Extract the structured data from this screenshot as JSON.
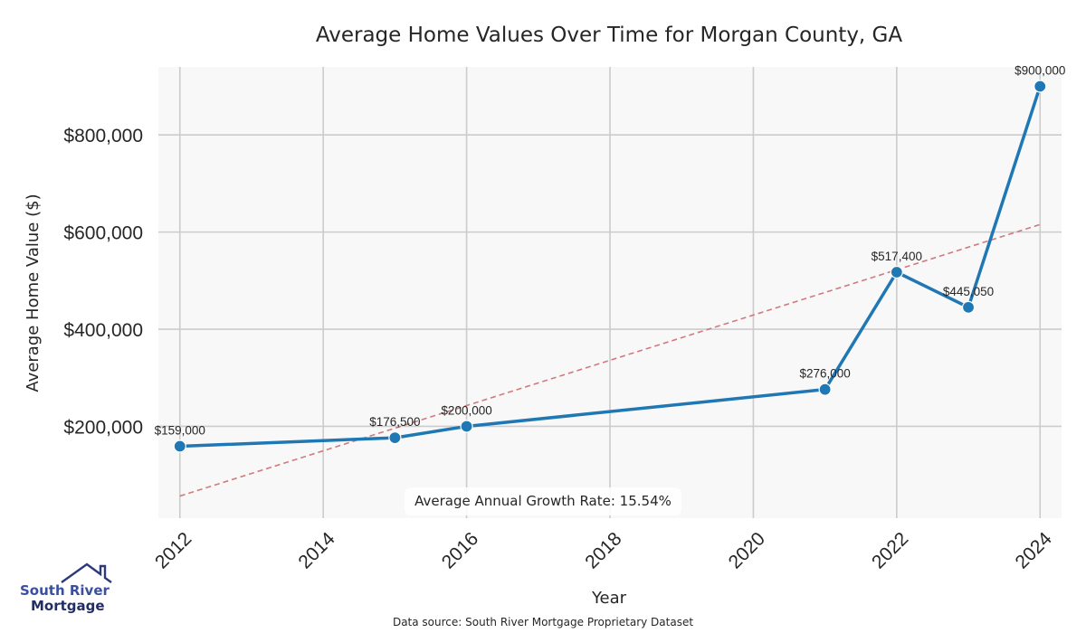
{
  "chart_data": {
    "type": "line",
    "title": "Average Home Values Over Time for Morgan County, GA",
    "xlabel": "Year",
    "ylabel": "Average Home Value ($)",
    "x": [
      2012,
      2015,
      2016,
      2021,
      2022,
      2023,
      2024
    ],
    "series": [
      {
        "name": "Average Home Value",
        "values": [
          159000,
          176500,
          200000,
          276000,
          517400,
          445050,
          900000
        ],
        "labels": [
          "$159,000",
          "$176,500",
          "$200,000",
          "$276,000",
          "$517,400",
          "$445,050",
          "$900,000"
        ],
        "color": "#1f77b4",
        "marker": "circle"
      }
    ],
    "trend_line": {
      "name": "Trend",
      "style": "dashed",
      "color": "#d07a7e",
      "start": {
        "x": 2012,
        "y": 56500
      },
      "end": {
        "x": 2024,
        "y": 615500
      }
    },
    "xticks": [
      2012,
      2014,
      2016,
      2018,
      2020,
      2022,
      2024
    ],
    "xtick_labels": [
      "2012",
      "2014",
      "2016",
      "2018",
      "2020",
      "2022",
      "2024"
    ],
    "xtick_rotation_deg": 45,
    "yticks": [
      200000,
      400000,
      600000,
      800000
    ],
    "ytick_labels": [
      "$200,000",
      "$400,000",
      "$600,000",
      "$800,000"
    ],
    "xlim": [
      2011.7,
      2024.3
    ],
    "ylim": [
      11000,
      940000
    ],
    "grid": true,
    "annotation": "Average Annual Growth Rate: 15.54%",
    "colors": {
      "plot_background": "#f8f8f8",
      "grid": "#cccccc",
      "line": "#1f77b4",
      "trend": "#d07a7e"
    }
  },
  "footer": {
    "source": "Data source: South River Mortgage Proprietary Dataset"
  },
  "logo": {
    "line1": "South River",
    "line2": "Mortgage",
    "brand_color": "#2b3a7a"
  }
}
